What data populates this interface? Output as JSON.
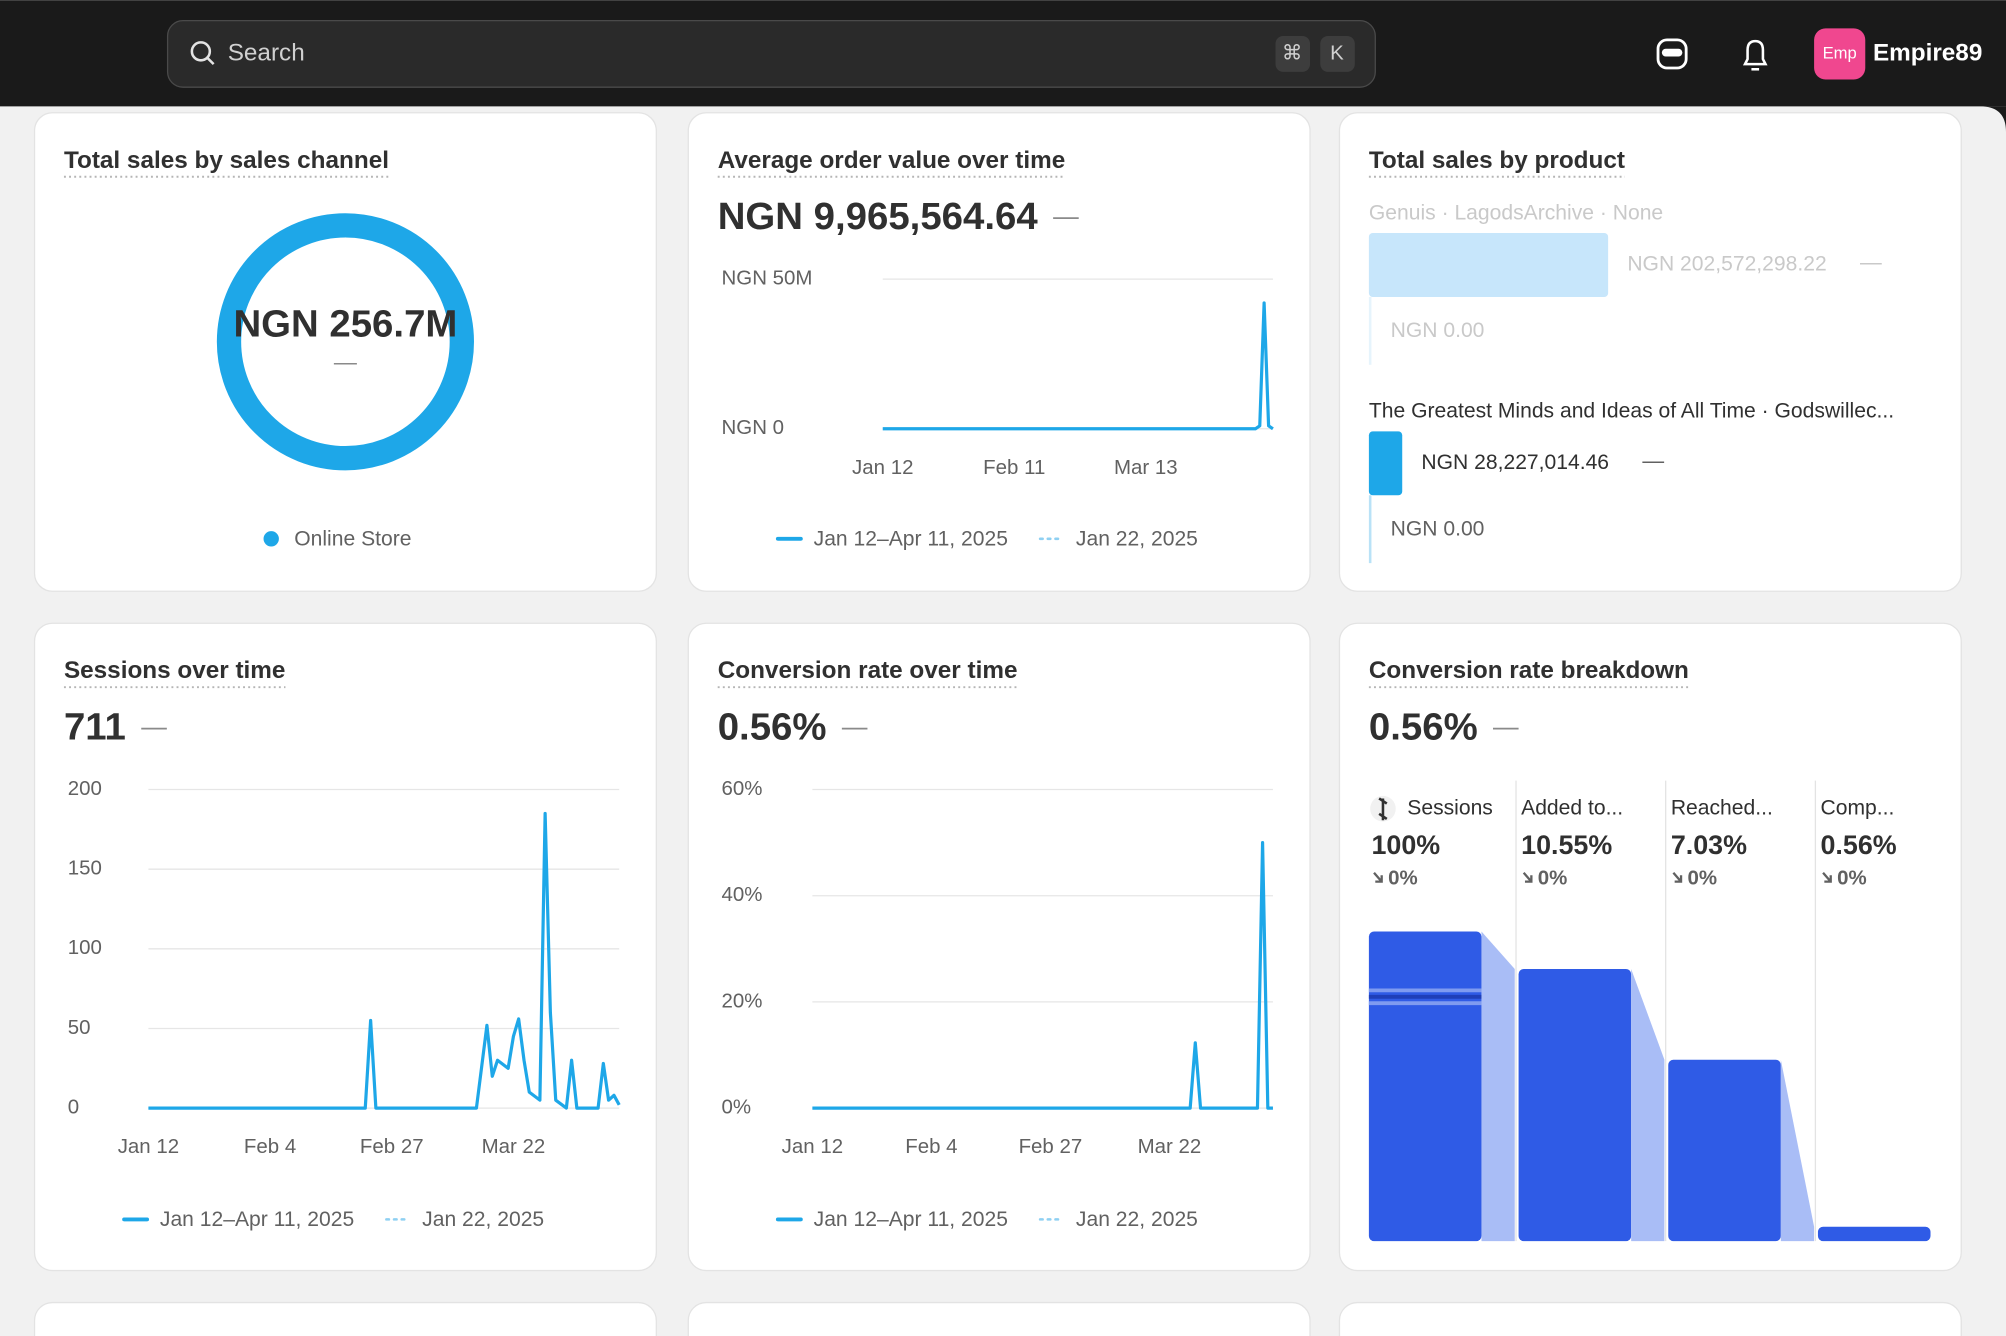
{
  "topbar": {
    "search_placeholder": "Search",
    "shortcut_keys": [
      "⌘",
      "K"
    ],
    "avatar_initials": "Emp",
    "username": "Empire89"
  },
  "cards": [
    {
      "type": "donut",
      "title": "Total sales by sales channel",
      "center_label": "NGN 256.7M",
      "change": "—",
      "series": [
        {
          "name": "Online Store",
          "color": "#1ea7e8",
          "value": 256700000
        }
      ]
    },
    {
      "type": "line",
      "title": "Average order value over time",
      "summary": "NGN 9,965,564.64",
      "change": "—",
      "color": "#1ea7e8",
      "x": [
        0,
        85,
        86,
        87,
        88,
        89
      ],
      "values": [
        0,
        0,
        1000000,
        42000000,
        1000000,
        0
      ],
      "xlim": [
        0,
        89
      ],
      "ylim": [
        0,
        50000000
      ],
      "xticks": [
        {
          "value": 0,
          "label": "Jan 12"
        },
        {
          "value": 30,
          "label": "Feb 11"
        },
        {
          "value": 60,
          "label": "Mar 13"
        }
      ],
      "yticks": [
        {
          "value": 0,
          "label": "NGN 0"
        },
        {
          "value": 50000000,
          "label": "NGN 50M"
        }
      ],
      "legend": [
        "Jan 12–Apr 11, 2025",
        "Jan 22, 2025"
      ]
    },
    {
      "type": "product_bars",
      "title": "Total sales by product",
      "xlim": [
        0,
        202572298.22
      ],
      "color": "#1ea7e8",
      "products": [
        {
          "name": "Genuis · LagodsArchive · None",
          "value": 202572298.22,
          "value_label": "NGN 202,572,298.22",
          "change": "—",
          "comparison_label": "NGN 0.00"
        },
        {
          "name": "The Greatest Minds and Ideas of All Time · Godswillec...",
          "value": 28227014.46,
          "value_label": "NGN 28,227,014.46",
          "change": "—",
          "comparison_label": "NGN 0.00"
        }
      ]
    },
    {
      "type": "line",
      "title": "Sessions over time",
      "summary": "711",
      "change": "—",
      "color": "#1ea7e8",
      "x": [
        0,
        41,
        42,
        43,
        62,
        64,
        65,
        66,
        68,
        69,
        70,
        71,
        72,
        74,
        75,
        76,
        77,
        79,
        80,
        81,
        85,
        86,
        87,
        88,
        89
      ],
      "values": [
        0,
        0,
        55,
        0,
        0,
        52,
        20,
        30,
        25,
        45,
        56,
        30,
        10,
        5,
        185,
        60,
        5,
        0,
        30,
        0,
        0,
        28,
        5,
        8,
        2
      ],
      "xlim": [
        0,
        89
      ],
      "ylim": [
        0,
        200
      ],
      "xticks": [
        {
          "value": 0,
          "label": "Jan 12"
        },
        {
          "value": 23,
          "label": "Feb 4"
        },
        {
          "value": 46,
          "label": "Feb 27"
        },
        {
          "value": 69,
          "label": "Mar 22"
        }
      ],
      "yticks": [
        0,
        50,
        100,
        150,
        200
      ],
      "legend": [
        "Jan 12–Apr 11, 2025",
        "Jan 22, 2025"
      ]
    },
    {
      "type": "line",
      "title": "Conversion rate over time",
      "summary": "0.56%",
      "change": "—",
      "color": "#1ea7e8",
      "x": [
        0,
        73,
        74,
        75,
        86,
        87,
        88,
        89
      ],
      "values": [
        0,
        0,
        12.3,
        0,
        0,
        50,
        0,
        0
      ],
      "xlim": [
        0,
        89
      ],
      "ylim": [
        0,
        60
      ],
      "xticks": [
        {
          "value": 0,
          "label": "Jan 12"
        },
        {
          "value": 23,
          "label": "Feb 4"
        },
        {
          "value": 46,
          "label": "Feb 27"
        },
        {
          "value": 69,
          "label": "Mar 22"
        }
      ],
      "yticks": [
        {
          "value": 0,
          "label": "0%"
        },
        {
          "value": 20,
          "label": "20%"
        },
        {
          "value": 40,
          "label": "40%"
        },
        {
          "value": 60,
          "label": "60%"
        }
      ],
      "legend": [
        "Jan 12–Apr 11, 2025",
        "Jan 22, 2025"
      ]
    },
    {
      "type": "funnel",
      "title": "Conversion rate breakdown",
      "summary": "0.56%",
      "change": "—",
      "color": "#2f5be6",
      "ylim": [
        0,
        12
      ],
      "categories": [
        "Sessions",
        "Added to...",
        "Reached...",
        "Comp..."
      ],
      "values": [
        100,
        10.55,
        7.03,
        0.56
      ],
      "value_labels": [
        "100%",
        "10.55%",
        "7.03%",
        "0.56%"
      ],
      "changes": [
        "0%",
        "0%",
        "0%",
        "0%"
      ]
    }
  ]
}
